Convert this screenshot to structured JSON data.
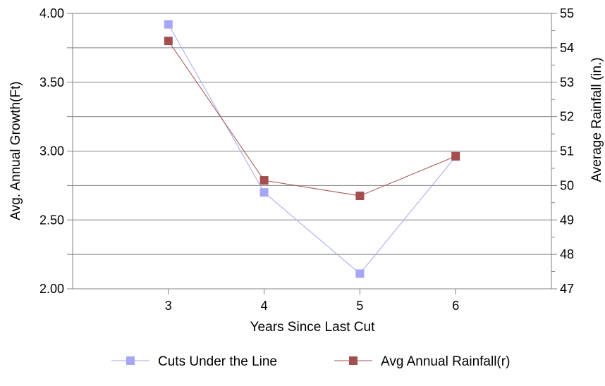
{
  "chart_data": {
    "type": "line",
    "title": "",
    "xlabel": "Years Since Last Cut",
    "ylabel": "Avg. Annual Growth(Ft)",
    "y2label": "Average Rainfall (in.)",
    "x": [
      3,
      4,
      5,
      6
    ],
    "xticks": [
      "3",
      "4",
      "5",
      "6"
    ],
    "xlim": [
      2,
      7
    ],
    "ylim": [
      2.0,
      4.0
    ],
    "yticks": [
      "2.00",
      "2.50",
      "3.00",
      "3.50",
      "4.00"
    ],
    "y2lim": [
      47,
      55
    ],
    "y2ticks": [
      "47",
      "48",
      "49",
      "50",
      "51",
      "52",
      "53",
      "54",
      "55"
    ],
    "grid": true,
    "legend_position": "bottom",
    "series": [
      {
        "name": "Cuts Under the Line",
        "axis": "left",
        "color": "#a6a6f5",
        "values": [
          3.92,
          2.7,
          2.11,
          2.96
        ]
      },
      {
        "name": "Avg Annual Rainfall(r)",
        "axis": "right",
        "color": "#a44f4f",
        "values": [
          54.2,
          50.15,
          49.7,
          50.85
        ]
      }
    ]
  }
}
